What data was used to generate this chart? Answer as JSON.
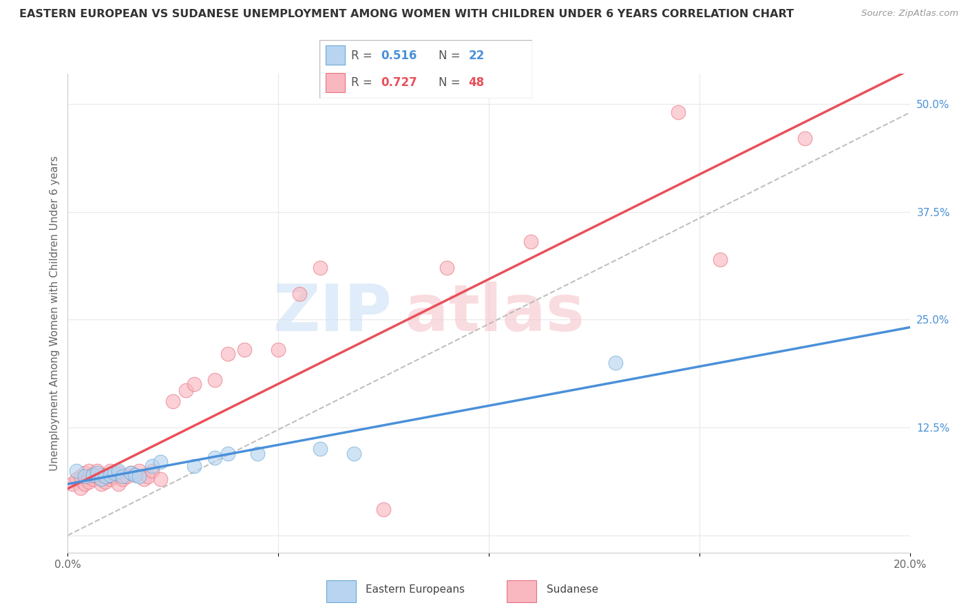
{
  "title": "EASTERN EUROPEAN VS SUDANESE UNEMPLOYMENT AMONG WOMEN WITH CHILDREN UNDER 6 YEARS CORRELATION CHART",
  "source": "Source: ZipAtlas.com",
  "ylabel": "Unemployment Among Women with Children Under 6 years",
  "xlim": [
    0.0,
    0.2
  ],
  "ylim": [
    -0.02,
    0.535
  ],
  "xticks": [
    0.0,
    0.05,
    0.1,
    0.15,
    0.2
  ],
  "xticklabels": [
    "0.0%",
    "",
    "",
    "",
    "20.0%"
  ],
  "ytick_positions": [
    0.0,
    0.125,
    0.25,
    0.375,
    0.5
  ],
  "ytick_labels": [
    "",
    "12.5%",
    "25.0%",
    "37.5%",
    "50.0%"
  ],
  "R_eastern": 0.516,
  "N_eastern": 22,
  "R_sudanese": 0.727,
  "N_sudanese": 48,
  "eastern_color": "#b8d4f0",
  "sudanese_color": "#f9b8c0",
  "eastern_edge_color": "#6aaad4",
  "sudanese_edge_color": "#e87080",
  "eastern_line_color": "#4a90d9",
  "sudanese_line_color": "#e8505a",
  "diagonal_color": "#b0b0b0",
  "background_color": "#ffffff",
  "grid_color": "#e8e8e8",
  "legend_box_color": "#f0f4f8",
  "legend_border_color": "#cccccc",
  "eastern_x": [
    0.002,
    0.004,
    0.006,
    0.007,
    0.008,
    0.009,
    0.01,
    0.011,
    0.012,
    0.013,
    0.015,
    0.016,
    0.017,
    0.02,
    0.022,
    0.03,
    0.035,
    0.038,
    0.045,
    0.06,
    0.068,
    0.13
  ],
  "eastern_y": [
    0.075,
    0.068,
    0.07,
    0.072,
    0.065,
    0.068,
    0.07,
    0.072,
    0.075,
    0.068,
    0.072,
    0.07,
    0.068,
    0.08,
    0.085,
    0.08,
    0.09,
    0.095,
    0.095,
    0.1,
    0.095,
    0.2
  ],
  "sudanese_x": [
    0.001,
    0.002,
    0.003,
    0.003,
    0.004,
    0.004,
    0.005,
    0.005,
    0.005,
    0.006,
    0.006,
    0.007,
    0.007,
    0.008,
    0.008,
    0.008,
    0.009,
    0.009,
    0.01,
    0.01,
    0.01,
    0.011,
    0.012,
    0.012,
    0.013,
    0.014,
    0.015,
    0.016,
    0.017,
    0.018,
    0.019,
    0.02,
    0.022,
    0.025,
    0.028,
    0.03,
    0.035,
    0.038,
    0.042,
    0.05,
    0.055,
    0.06,
    0.075,
    0.09,
    0.11,
    0.145,
    0.155,
    0.175
  ],
  "sudanese_y": [
    0.06,
    0.065,
    0.055,
    0.068,
    0.06,
    0.072,
    0.062,
    0.068,
    0.075,
    0.065,
    0.07,
    0.068,
    0.075,
    0.06,
    0.065,
    0.07,
    0.062,
    0.068,
    0.065,
    0.068,
    0.075,
    0.068,
    0.072,
    0.06,
    0.065,
    0.068,
    0.072,
    0.07,
    0.075,
    0.065,
    0.068,
    0.075,
    0.065,
    0.155,
    0.168,
    0.175,
    0.18,
    0.21,
    0.215,
    0.215,
    0.28,
    0.31,
    0.03,
    0.31,
    0.34,
    0.49,
    0.32,
    0.46
  ]
}
